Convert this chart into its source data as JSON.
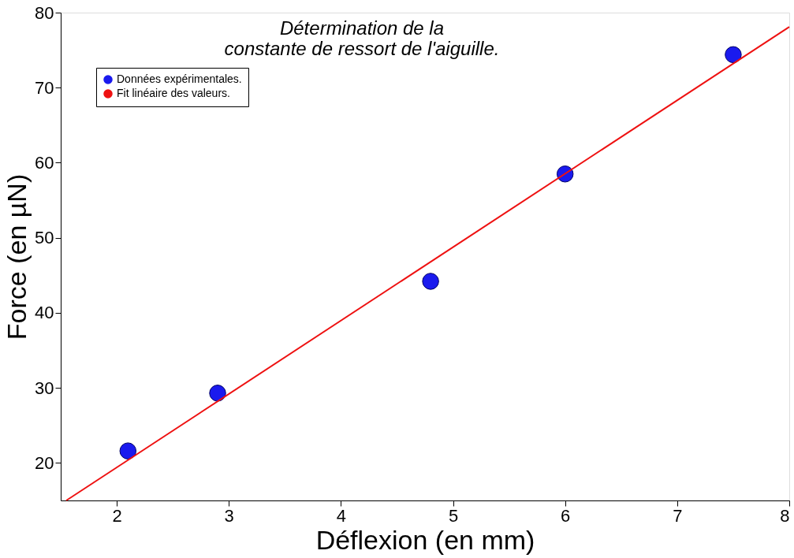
{
  "chart_data": {
    "type": "scatter",
    "title": "Détermination de la\nconstante de ressort de l'aiguille.",
    "xlabel": "Déflexion (en mm)",
    "ylabel": "Force (en µN)",
    "xlim": [
      1.5,
      8
    ],
    "ylim": [
      15,
      80
    ],
    "xticks": [
      2,
      3,
      4,
      5,
      6,
      7,
      8
    ],
    "yticks": [
      20,
      30,
      40,
      50,
      60,
      70,
      80
    ],
    "grid": false,
    "legend": "top left",
    "series": [
      {
        "name": "Données expérimentales.",
        "color": "#1a1aee",
        "marker": "circle",
        "x": [
          2.1,
          2.9,
          4.8,
          6.0,
          7.5
        ],
        "values": [
          21.6,
          29.3,
          44.2,
          58.5,
          74.4
        ]
      },
      {
        "name": "Fit linéaire des valeurs.",
        "type": "line",
        "color": "#ee1111",
        "marker": "none",
        "line_style": "solid",
        "x": [
          1.55,
          8
        ],
        "values": [
          15,
          78.1
        ]
      }
    ]
  }
}
